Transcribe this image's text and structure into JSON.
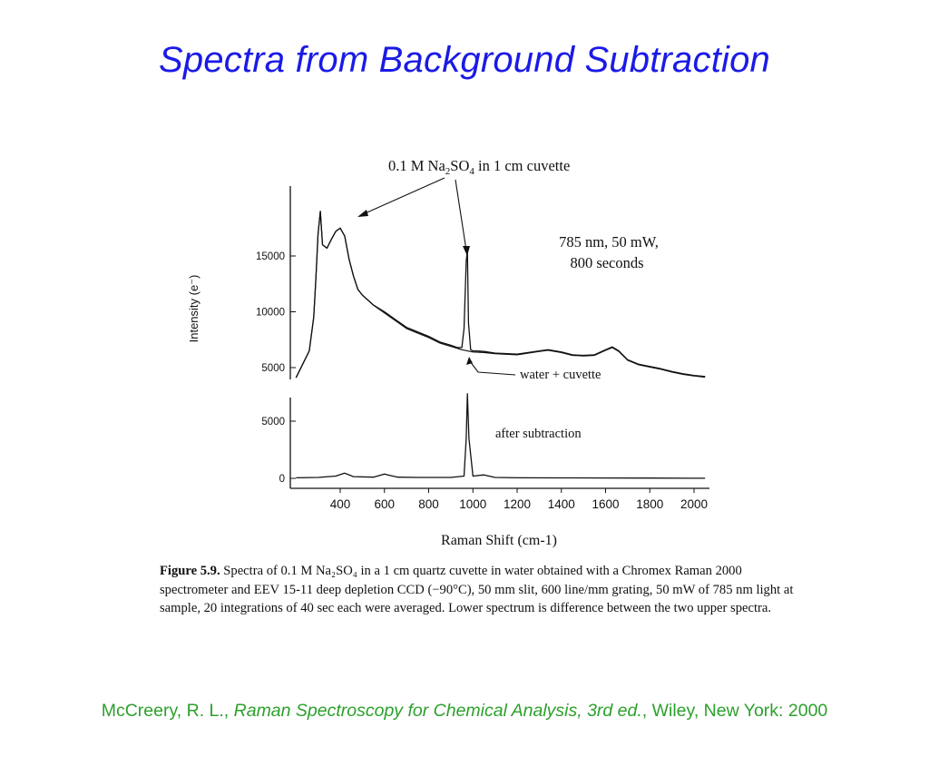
{
  "slide": {
    "title": "Spectra from Background Subtraction"
  },
  "figure": {
    "label_sample_pre": "0.1 M Na",
    "label_sample_sub1": "2",
    "label_sample_mid": "SO",
    "label_sample_sub2": "4",
    "label_sample_post": " in 1 cm cuvette",
    "conditions_line1": "785 nm, 50 mW,",
    "conditions_line2": "800 seconds",
    "label_water": "water +  cuvette",
    "label_after": "after subtraction",
    "caption_label": "Figure 5.9.",
    "caption_text": "Spectra of 0.1 M Na₂SO₄ in a 1 cm quartz cuvette in water obtained with a Chromex Raman 2000 spectrometer and EEV 15-11 deep depletion CCD (−90°C), 50 mm slit, 600 line/mm grating, 50 mW of 785 nm light at sample, 20 integrations of 40 sec each were averaged. Lower spectrum is difference between the two upper spectra."
  },
  "citation": {
    "author": "McCreery, R. L., ",
    "book": "Raman Spectroscopy for Chemical Analysis, 3rd ed.",
    "rest": ", Wiley, New York: 2000"
  },
  "chart_data": [
    {
      "type": "line",
      "panel": "upper",
      "ylabel": "Intensity (e⁻)",
      "yticks": [
        5000,
        10000,
        15000
      ],
      "ylim": [
        4000,
        19500
      ],
      "xlim": [
        200,
        2050
      ],
      "grid": false,
      "series": [
        {
          "name": "0.1 M Na2SO4 in 1 cm cuvette",
          "x": [
            200,
            260,
            280,
            290,
            300,
            310,
            320,
            340,
            360,
            380,
            400,
            420,
            440,
            460,
            480,
            500,
            550,
            600,
            650,
            700,
            750,
            800,
            850,
            900,
            930,
            950,
            960,
            970,
            975,
            980,
            990,
            1000,
            1020,
            1050,
            1100,
            1200,
            1300,
            1340,
            1400,
            1450,
            1500,
            1550,
            1600,
            1630,
            1660,
            1700,
            1750,
            1800,
            1850,
            1900,
            1950,
            2000,
            2050
          ],
          "y": [
            4100,
            6500,
            9500,
            13000,
            17000,
            19000,
            16000,
            15700,
            16500,
            17200,
            17500,
            16800,
            14700,
            13200,
            12000,
            11500,
            10600,
            10000,
            9300,
            8600,
            8200,
            7800,
            7300,
            7000,
            6800,
            6800,
            8500,
            14500,
            15500,
            9000,
            6600,
            6500,
            6500,
            6450,
            6300,
            6200,
            6500,
            6600,
            6400,
            6150,
            6100,
            6150,
            6600,
            6850,
            6500,
            5700,
            5300,
            5100,
            4900,
            4650,
            4450,
            4300,
            4200
          ]
        },
        {
          "name": "water +  cuvette",
          "x": [
            200,
            260,
            280,
            290,
            300,
            310,
            320,
            340,
            360,
            380,
            400,
            420,
            440,
            460,
            480,
            500,
            550,
            600,
            650,
            700,
            750,
            800,
            850,
            900,
            950,
            1000,
            1050,
            1100,
            1200,
            1300,
            1340,
            1400,
            1450,
            1500,
            1550,
            1600,
            1630,
            1660,
            1700,
            1750,
            1800,
            1850,
            1900,
            1950,
            2000,
            2050
          ],
          "y": [
            4100,
            6500,
            9500,
            13000,
            17000,
            19000,
            16000,
            15700,
            16500,
            17200,
            17500,
            16800,
            14700,
            13200,
            12000,
            11500,
            10600,
            9900,
            9200,
            8500,
            8100,
            7700,
            7200,
            6900,
            6600,
            6400,
            6350,
            6250,
            6150,
            6450,
            6550,
            6350,
            6100,
            6050,
            6100,
            6550,
            6800,
            6450,
            5650,
            5250,
            5050,
            4850,
            4600,
            4400,
            4250,
            4150
          ]
        }
      ]
    },
    {
      "type": "line",
      "panel": "lower",
      "xlabel": "Raman Shift (cm-1)",
      "xticks": [
        400,
        600,
        800,
        1000,
        1200,
        1400,
        1600,
        1800,
        2000
      ],
      "yticks": [
        0,
        5000
      ],
      "ylim": [
        -500,
        7300
      ],
      "xlim": [
        200,
        2050
      ],
      "grid": false,
      "series": [
        {
          "name": "after subtraction",
          "x": [
            200,
            300,
            380,
            420,
            460,
            550,
            600,
            620,
            660,
            750,
            900,
            960,
            970,
            975,
            982,
            1000,
            1050,
            1100,
            1200,
            1400,
            1600,
            1800,
            2050
          ],
          "y": [
            50,
            80,
            200,
            450,
            150,
            100,
            380,
            280,
            100,
            80,
            80,
            200,
            3500,
            7400,
            3500,
            200,
            300,
            80,
            50,
            40,
            30,
            20,
            10
          ]
        }
      ]
    }
  ]
}
